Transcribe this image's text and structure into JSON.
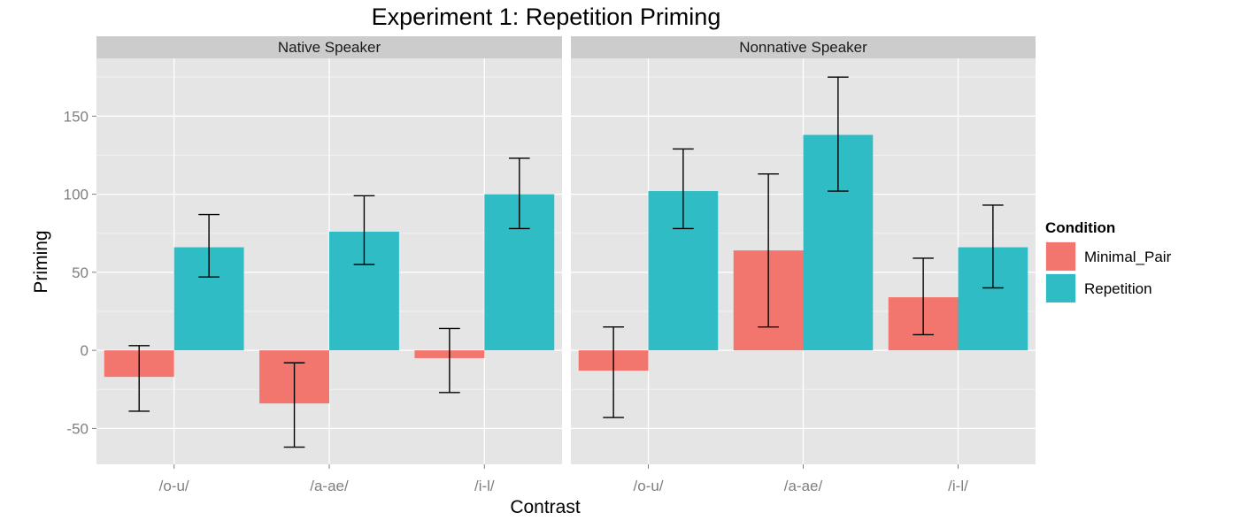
{
  "chart_data": {
    "type": "bar",
    "title": "Experiment 1: Repetition Priming",
    "xlabel": "Contrast",
    "ylabel": "Priming",
    "ylim": [
      -73,
      187
    ],
    "yticks": [
      -50,
      0,
      50,
      100,
      150
    ],
    "categories": [
      "/o-u/",
      "/a-ae/",
      "/i-l/"
    ],
    "legend": {
      "title": "Condition",
      "placement": "right",
      "entries": [
        "Minimal_Pair",
        "Repetition"
      ]
    },
    "colors": {
      "Minimal_Pair": "#F2766E",
      "Repetition": "#2FBCC4",
      "panel_bg": "#E5E5E5",
      "strip_bg": "#CCCCCC",
      "grid": "#FFFFFF",
      "errorbar": "#000000"
    },
    "grid": true,
    "panels": [
      {
        "name": "Native Speaker",
        "series": [
          {
            "name": "Minimal_Pair",
            "values": [
              -17,
              -34,
              -5
            ],
            "err_low": [
              -39,
              -62,
              -27
            ],
            "err_high": [
              3,
              -8,
              14
            ]
          },
          {
            "name": "Repetition",
            "values": [
              66,
              76,
              100
            ],
            "err_low": [
              47,
              55,
              78
            ],
            "err_high": [
              87,
              99,
              123
            ]
          }
        ]
      },
      {
        "name": "Nonnative Speaker",
        "series": [
          {
            "name": "Minimal_Pair",
            "values": [
              -13,
              64,
              34
            ],
            "err_low": [
              -43,
              15,
              10
            ],
            "err_high": [
              15,
              113,
              59
            ]
          },
          {
            "name": "Repetition",
            "values": [
              102,
              138,
              66
            ],
            "err_low": [
              78,
              102,
              40
            ],
            "err_high": [
              129,
              175,
              93
            ]
          }
        ]
      }
    ]
  }
}
